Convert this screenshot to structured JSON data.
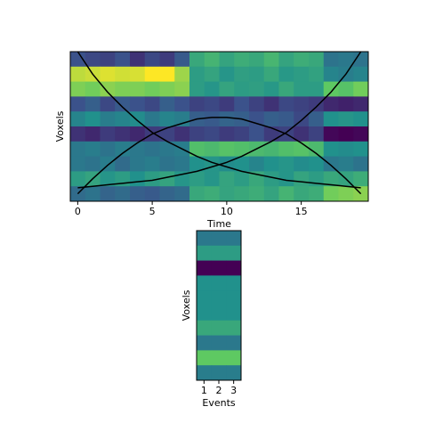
{
  "chart_data": [
    {
      "type": "heatmap",
      "colormap": "viridis",
      "xlabel": "Time",
      "ylabel": "Voxels",
      "xlim": [
        -0.5,
        19.5
      ],
      "ylim": [
        9.5,
        -0.5
      ],
      "xticks": [
        0,
        5,
        10,
        15
      ],
      "z": [
        [
          0.25,
          0.22,
          0.2,
          0.25,
          0.15,
          0.22,
          0.18,
          0.28,
          0.6,
          0.65,
          0.58,
          0.62,
          0.6,
          0.66,
          0.58,
          0.62,
          0.6,
          0.38,
          0.4,
          0.38
        ],
        [
          0.9,
          0.92,
          0.95,
          0.93,
          0.94,
          1.0,
          1.0,
          0.85,
          0.55,
          0.58,
          0.52,
          0.56,
          0.55,
          0.6,
          0.53,
          0.55,
          0.57,
          0.45,
          0.42,
          0.45
        ],
        [
          0.8,
          0.78,
          0.82,
          0.8,
          0.8,
          0.78,
          0.8,
          0.82,
          0.55,
          0.52,
          0.58,
          0.55,
          0.56,
          0.53,
          0.6,
          0.55,
          0.55,
          0.75,
          0.72,
          0.78
        ],
        [
          0.25,
          0.3,
          0.22,
          0.28,
          0.25,
          0.22,
          0.3,
          0.25,
          0.2,
          0.22,
          0.18,
          0.25,
          0.2,
          0.15,
          0.22,
          0.2,
          0.18,
          0.12,
          0.1,
          0.12
        ],
        [
          0.45,
          0.5,
          0.42,
          0.45,
          0.48,
          0.4,
          0.45,
          0.42,
          0.3,
          0.28,
          0.32,
          0.3,
          0.25,
          0.3,
          0.28,
          0.22,
          0.3,
          0.5,
          0.52,
          0.5
        ],
        [
          0.15,
          0.12,
          0.18,
          0.15,
          0.12,
          0.18,
          0.2,
          0.15,
          0.2,
          0.22,
          0.18,
          0.2,
          0.25,
          0.18,
          0.2,
          0.15,
          0.2,
          0.02,
          0.0,
          0.02
        ],
        [
          0.4,
          0.42,
          0.38,
          0.42,
          0.4,
          0.38,
          0.4,
          0.42,
          0.7,
          0.68,
          0.72,
          0.7,
          0.68,
          0.66,
          0.7,
          0.72,
          0.68,
          0.5,
          0.48,
          0.5
        ],
        [
          0.4,
          0.38,
          0.42,
          0.35,
          0.4,
          0.42,
          0.38,
          0.4,
          0.5,
          0.52,
          0.48,
          0.5,
          0.45,
          0.5,
          0.52,
          0.48,
          0.5,
          0.4,
          0.42,
          0.38
        ],
        [
          0.55,
          0.58,
          0.52,
          0.55,
          0.5,
          0.55,
          0.58,
          0.52,
          0.55,
          0.52,
          0.58,
          0.55,
          0.6,
          0.55,
          0.52,
          0.58,
          0.55,
          0.6,
          0.58,
          0.62
        ],
        [
          0.35,
          0.38,
          0.32,
          0.35,
          0.3,
          0.28,
          0.32,
          0.35,
          0.6,
          0.62,
          0.58,
          0.6,
          0.62,
          0.58,
          0.65,
          0.6,
          0.62,
          0.78,
          0.8,
          0.82
        ]
      ],
      "x": [
        0,
        1,
        2,
        3,
        4,
        5,
        6,
        7,
        8,
        9,
        10,
        11,
        12,
        13,
        14,
        15,
        16,
        17,
        18,
        19
      ],
      "series": [
        {
          "color": "#000000",
          "values": [
            -0.5,
            1.0,
            2.2,
            3.2,
            4.1,
            4.9,
            5.5,
            6.0,
            6.5,
            6.9,
            7.2,
            7.5,
            7.7,
            7.9,
            8.1,
            8.2,
            8.3,
            8.4,
            8.5,
            8.6
          ]
        },
        {
          "color": "#000000",
          "values": [
            8.6,
            8.5,
            8.4,
            8.3,
            8.2,
            8.1,
            7.9,
            7.7,
            7.5,
            7.2,
            6.9,
            6.5,
            6.0,
            5.5,
            4.9,
            4.1,
            3.2,
            2.2,
            1.0,
            -0.5
          ]
        },
        {
          "color": "#000000",
          "values": [
            9.0,
            8.0,
            7.1,
            6.3,
            5.6,
            5.0,
            4.6,
            4.3,
            4.0,
            3.9,
            3.9,
            4.0,
            4.3,
            4.6,
            5.0,
            5.6,
            6.3,
            7.1,
            8.0,
            9.0
          ]
        }
      ]
    },
    {
      "type": "heatmap",
      "colormap": "viridis",
      "xlabel": "Events",
      "ylabel": "Voxels",
      "xlim": [
        0.5,
        3.5
      ],
      "ylim": [
        9.5,
        -0.5
      ],
      "xticks": [
        1,
        2,
        3
      ],
      "z": [
        [
          0.4,
          0.4,
          0.4
        ],
        [
          0.55,
          0.55,
          0.55
        ],
        [
          0.0,
          0.0,
          0.0
        ],
        [
          0.5,
          0.5,
          0.5
        ],
        [
          0.5,
          0.5,
          0.5
        ],
        [
          0.5,
          0.5,
          0.5
        ],
        [
          0.6,
          0.6,
          0.6
        ],
        [
          0.4,
          0.4,
          0.4
        ],
        [
          0.75,
          0.75,
          0.75
        ],
        [
          0.42,
          0.42,
          0.42
        ]
      ]
    }
  ]
}
